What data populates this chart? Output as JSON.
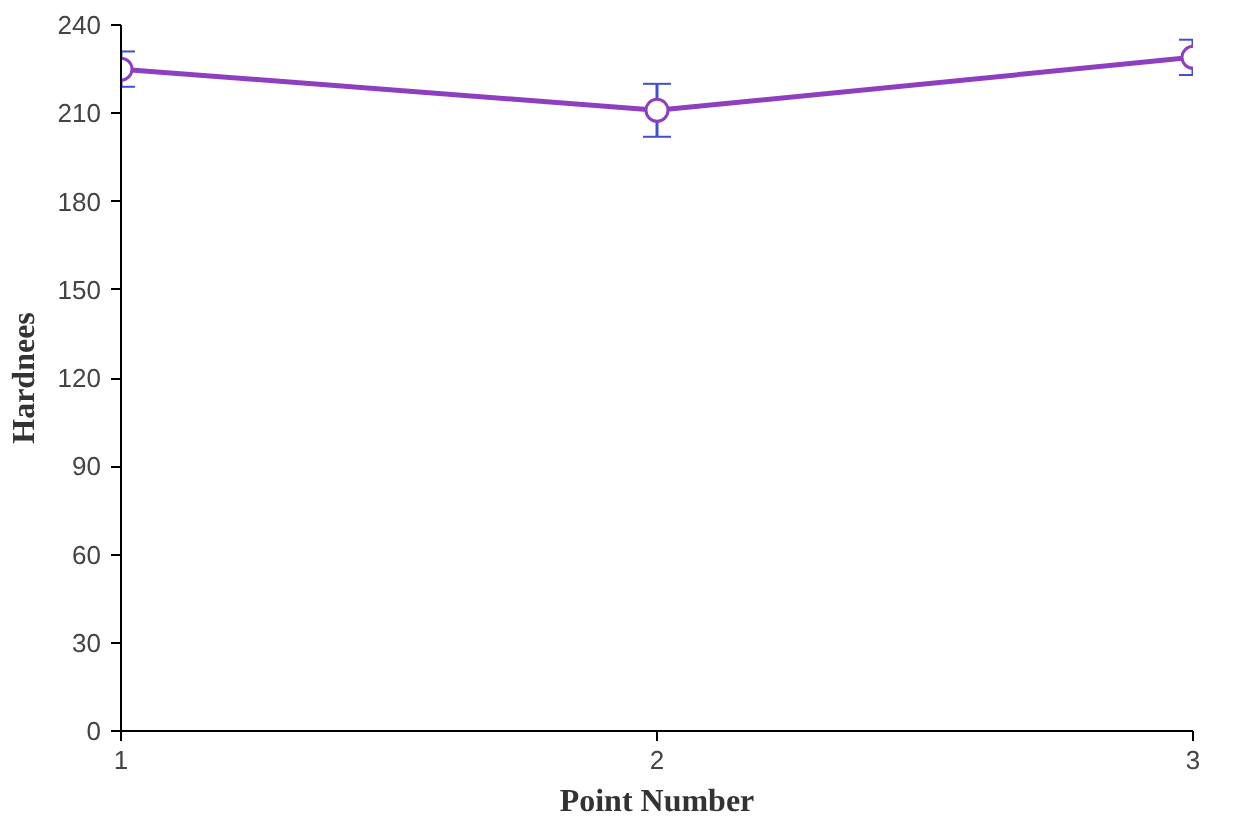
{
  "chart_data": {
    "type": "line",
    "xlabel": "Point Number",
    "ylabel": "Hardnees",
    "x": [
      1,
      2,
      3
    ],
    "series": [
      {
        "color": "#8e3fbf",
        "values": [
          225,
          211,
          229
        ],
        "errors": [
          6,
          9,
          6
        ]
      }
    ],
    "xlim": [
      1,
      3
    ],
    "xticks": [
      1,
      2,
      3
    ],
    "ylim": [
      0,
      240
    ],
    "yticks": [
      0,
      30,
      60,
      90,
      120,
      150,
      180,
      210,
      240
    ],
    "grid": false,
    "marker": "circle",
    "line_style": "solid"
  }
}
